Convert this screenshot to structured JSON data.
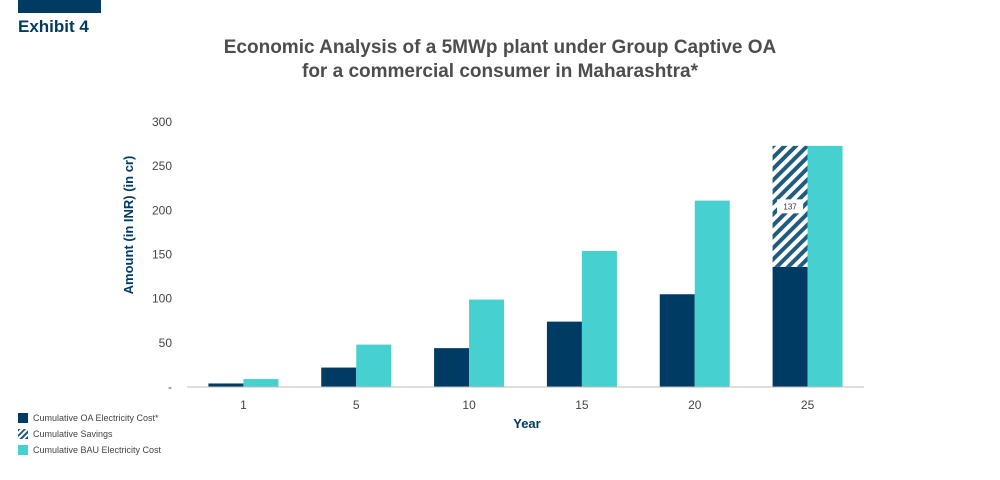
{
  "exhibit": "Exhibit 4",
  "title_line1": "Economic Analysis of a 5MWp plant under Group Captive OA",
  "title_line2": "for a commercial consumer in Maharashtra*",
  "chart_data": {
    "type": "bar",
    "categories": [
      "1",
      "5",
      "10",
      "15",
      "20",
      "25"
    ],
    "series": [
      {
        "name": "Cumulative OA Electricity Cost*",
        "values": [
          4,
          22,
          44,
          74,
          105,
          136
        ],
        "color": "#003B63"
      },
      {
        "name": "Cumulative Savings",
        "values": [
          0,
          0,
          0,
          0,
          0,
          137
        ],
        "color": "#1F5C80",
        "pattern": "hatched"
      },
      {
        "name": "Cumulative BAU Electricity Cost",
        "values": [
          9,
          48,
          99,
          154,
          211,
          273
        ],
        "color": "#46D0CF"
      }
    ],
    "savings_label": "137",
    "xlabel": "Year",
    "ylabel": "Amount (in INR) (in cr)",
    "ylim": [
      0,
      300
    ],
    "yticks": [
      "-",
      "50",
      "100",
      "150",
      "200",
      "250",
      "300"
    ],
    "grid": false,
    "legend_position": "bottom-left"
  }
}
